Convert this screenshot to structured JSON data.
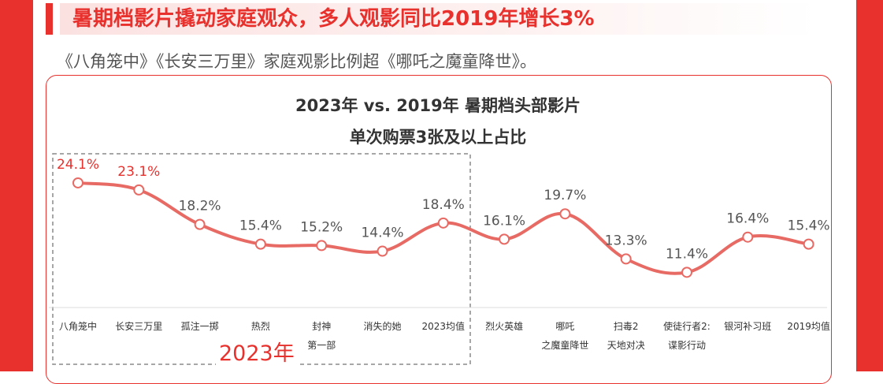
{
  "header": {
    "headline": "暑期档影片撬动家庭观众，多人观影同比2019年增长3%",
    "subtitle": "《八角笼中》《长安三万里》家庭观影比例超《哪吒之魔童降世》。"
  },
  "colors": {
    "accent": "#e8302c",
    "line": "#e86a64",
    "highlight_text": "#e8302c",
    "normal_text": "#555555"
  },
  "chart_data": {
    "type": "line",
    "title_line1": "2023年 vs. 2019年 暑期档头部影片",
    "title_line2": "单次购票3张及以上占比",
    "group_label": "2023年",
    "categories": [
      [
        "八角笼中"
      ],
      [
        "长安三万里"
      ],
      [
        "孤注一掷"
      ],
      [
        "热烈"
      ],
      [
        "封神",
        "第一部"
      ],
      [
        "消失的她"
      ],
      [
        "2023均值"
      ],
      [
        "烈火英雄"
      ],
      [
        "哪吒",
        "之魔童降世"
      ],
      [
        "扫毒2",
        "天地对决"
      ],
      [
        "使徒行者2:",
        "谍影行动"
      ],
      [
        "银河补习班"
      ],
      [
        "2019均值"
      ]
    ],
    "values": [
      24.1,
      23.1,
      18.2,
      15.4,
      15.2,
      14.4,
      18.4,
      16.1,
      19.7,
      13.3,
      11.4,
      16.4,
      15.4
    ],
    "labels": [
      "24.1%",
      "23.1%",
      "18.2%",
      "15.4%",
      "15.2%",
      "14.4%",
      "18.4%",
      "16.1%",
      "19.7%",
      "13.3%",
      "11.4%",
      "16.4%",
      "15.4%"
    ],
    "highlighted": [
      0,
      1
    ],
    "grouped_2023_count": 7,
    "grid": false,
    "legend": "none"
  }
}
